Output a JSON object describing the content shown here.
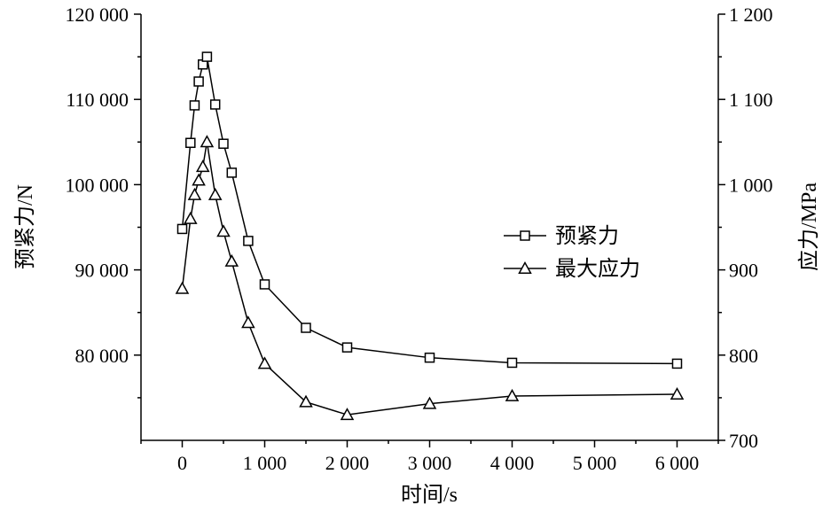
{
  "chart_data": {
    "type": "line",
    "xlabel": "时间/s",
    "ylabel": "预紧力/N",
    "y2label": "应力/MPa",
    "xlim": [
      -500,
      6500
    ],
    "ylim": [
      70000,
      120000
    ],
    "y2lim": [
      700,
      1200
    ],
    "x_ticks": [
      0,
      1000,
      2000,
      3000,
      4000,
      5000,
      6000
    ],
    "x_tick_labels": [
      "0",
      "1 000",
      "2 000",
      "3 000",
      "4 000",
      "5 000",
      "6 000"
    ],
    "y_ticks": [
      80000,
      90000,
      100000,
      110000,
      120000
    ],
    "y_tick_labels": [
      "80 000",
      "90 000",
      "100 000",
      "110 000",
      "120 000"
    ],
    "y2_ticks": [
      700,
      800,
      900,
      1000,
      1100,
      1200
    ],
    "y2_tick_labels": [
      "700",
      "800",
      "900",
      "1 000",
      "1 100",
      "1 200"
    ],
    "grid": false,
    "legend_position": "center-right",
    "series": [
      {
        "name": "预紧力",
        "axis": "left",
        "marker": "square",
        "x": [
          0,
          100,
          150,
          200,
          250,
          300,
          400,
          500,
          600,
          800,
          1000,
          1500,
          2000,
          3000,
          4000,
          6000
        ],
        "y": [
          94800,
          104900,
          109300,
          112100,
          114100,
          115000,
          109400,
          104800,
          101400,
          93400,
          88300,
          83200,
          80900,
          79700,
          79100,
          79000
        ]
      },
      {
        "name": "最大应力",
        "axis": "right",
        "marker": "triangle",
        "x": [
          0,
          100,
          150,
          200,
          250,
          300,
          400,
          500,
          600,
          800,
          1000,
          1500,
          2000,
          3000,
          4000,
          6000
        ],
        "y": [
          878,
          960,
          988,
          1005,
          1021,
          1050,
          988,
          945,
          910,
          838,
          790,
          745,
          730,
          743,
          752,
          754
        ]
      }
    ]
  }
}
